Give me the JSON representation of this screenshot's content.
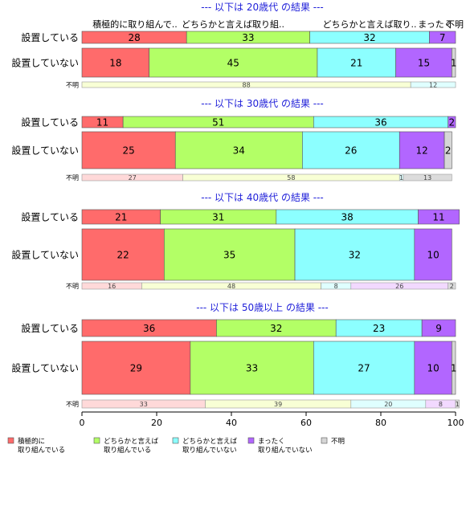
{
  "chart_data": {
    "type": "bar",
    "orientation": "horizontal",
    "stacked": "percent",
    "xlim": [
      0,
      100
    ],
    "xticks": [
      0,
      20,
      40,
      60,
      80,
      100
    ],
    "category_labels": {
      "installed": "設置している",
      "not_installed": "設置していない",
      "unknown": "不明"
    },
    "header_labels": [
      "積極的に取り組んで..",
      "どちらかと言えば取り組..",
      "どちらかと言えば取り..",
      "まったく",
      "不明"
    ],
    "series": [
      {
        "name": "積極的に\n取り組んでいる",
        "color": "#ff6b6b",
        "light": "#ffd9d9"
      },
      {
        "name": "どちらかと言えば\n取り組んでいる",
        "color": "#b3ff66",
        "light": "#f8ffd5"
      },
      {
        "name": "どちらかと言えば\n取り組んでいない",
        "color": "#8cffff",
        "light": "#dfffff"
      },
      {
        "name": "まったく\n取り組んでいない",
        "color": "#b266ff",
        "light": "#f2d9ff"
      },
      {
        "name": "不明",
        "color": "#d6d6d6",
        "light": "#dcdcdc"
      }
    ],
    "groups": [
      {
        "title": "--- 以下は 20歳代 の結果 ---",
        "rows": [
          {
            "key": "installed",
            "values": [
              28,
              33,
              32,
              7,
              0
            ]
          },
          {
            "key": "not_installed",
            "values": [
              18,
              45,
              21,
              15,
              1
            ]
          },
          {
            "key": "unknown",
            "values": [
              0,
              88,
              12,
              0,
              0
            ]
          }
        ]
      },
      {
        "title": "--- 以下は 30歳代 の結果 ---",
        "rows": [
          {
            "key": "installed",
            "values": [
              11,
              51,
              36,
              2,
              0
            ]
          },
          {
            "key": "not_installed",
            "values": [
              25,
              34,
              26,
              12,
              2
            ]
          },
          {
            "key": "unknown",
            "values": [
              27,
              58,
              1,
              0,
              13
            ]
          }
        ]
      },
      {
        "title": "--- 以下は 40歳代 の結果 ---",
        "rows": [
          {
            "key": "installed",
            "values": [
              21,
              31,
              38,
              11,
              0
            ]
          },
          {
            "key": "not_installed",
            "values": [
              22,
              35,
              32,
              10,
              0
            ]
          },
          {
            "key": "unknown",
            "values": [
              16,
              48,
              8,
              26,
              2
            ]
          }
        ]
      },
      {
        "title": "--- 以下は 50歳以上 の結果 ---",
        "rows": [
          {
            "key": "installed",
            "values": [
              36,
              32,
              23,
              9,
              0
            ]
          },
          {
            "key": "not_installed",
            "values": [
              29,
              33,
              27,
              10,
              1
            ]
          },
          {
            "key": "unknown",
            "values": [
              33,
              39,
              20,
              8,
              1
            ]
          }
        ]
      }
    ]
  }
}
